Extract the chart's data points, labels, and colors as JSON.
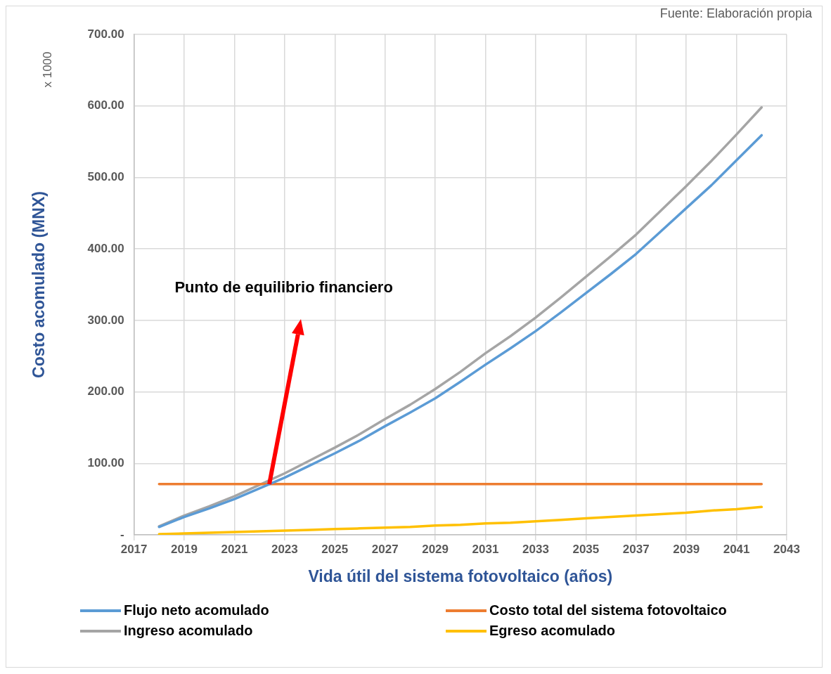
{
  "chart_data": {
    "type": "line",
    "xlabel": "Vida útil del sistema fotovoltaico (años)",
    "ylabel": "Costo acomulado (MNX)",
    "x": [
      2018,
      2019,
      2020,
      2021,
      2022,
      2023,
      2024,
      2025,
      2026,
      2027,
      2028,
      2029,
      2030,
      2031,
      2032,
      2033,
      2034,
      2035,
      2036,
      2037,
      2038,
      2039,
      2040,
      2041,
      2042
    ],
    "series": [
      {
        "name": "Flujo neto acomulado",
        "color": "#5b9bd5",
        "values": [
          11,
          25,
          37,
          50,
          65,
          80,
          97,
          114,
          132,
          152,
          171,
          191,
          214,
          238,
          261,
          285,
          311,
          338,
          365,
          393,
          425,
          457,
          489,
          524,
          559
        ]
      },
      {
        "name": "Costo total del sistema fotovoltaico",
        "color": "#ed7d31",
        "values": [
          71,
          71,
          71,
          71,
          71,
          71,
          71,
          71,
          71,
          71,
          71,
          71,
          71,
          71,
          71,
          71,
          71,
          71,
          71,
          71,
          71,
          71,
          71,
          71,
          71
        ]
      },
      {
        "name": "Ingreso acomulado",
        "color": "#a5a5a5",
        "values": [
          12,
          27,
          40,
          54,
          70,
          86,
          104,
          122,
          141,
          162,
          182,
          204,
          228,
          254,
          278,
          304,
          332,
          361,
          390,
          420,
          454,
          488,
          523,
          560,
          598
        ]
      },
      {
        "name": "Egreso acomulado",
        "color": "#ffc000",
        "values": [
          1,
          2,
          3,
          4,
          5,
          6,
          7,
          8,
          9,
          10,
          11,
          13,
          14,
          16,
          17,
          19,
          21,
          23,
          25,
          27,
          29,
          31,
          34,
          36,
          39
        ]
      }
    ],
    "xlim": [
      2017,
      2043
    ],
    "xticks": [
      2017,
      2019,
      2021,
      2023,
      2025,
      2027,
      2029,
      2031,
      2033,
      2035,
      2037,
      2039,
      2041,
      2043
    ],
    "ylim": [
      0,
      700
    ],
    "yticks": [
      {
        "value": 0,
        "label": "-"
      },
      {
        "value": 100,
        "label": "100.00"
      },
      {
        "value": 200,
        "label": "200.00"
      },
      {
        "value": 300,
        "label": "300.00"
      },
      {
        "value": 400,
        "label": "400.00"
      },
      {
        "value": 500,
        "label": "500.00"
      },
      {
        "value": 600,
        "label": "600.00"
      },
      {
        "value": 700,
        "label": "700.00"
      }
    ],
    "grid": true,
    "legend": "bottom",
    "marker": "none",
    "annotations": [
      "Fuente: Elaboración propia",
      "x 1000",
      "Punto de equilibrio financiero"
    ]
  }
}
